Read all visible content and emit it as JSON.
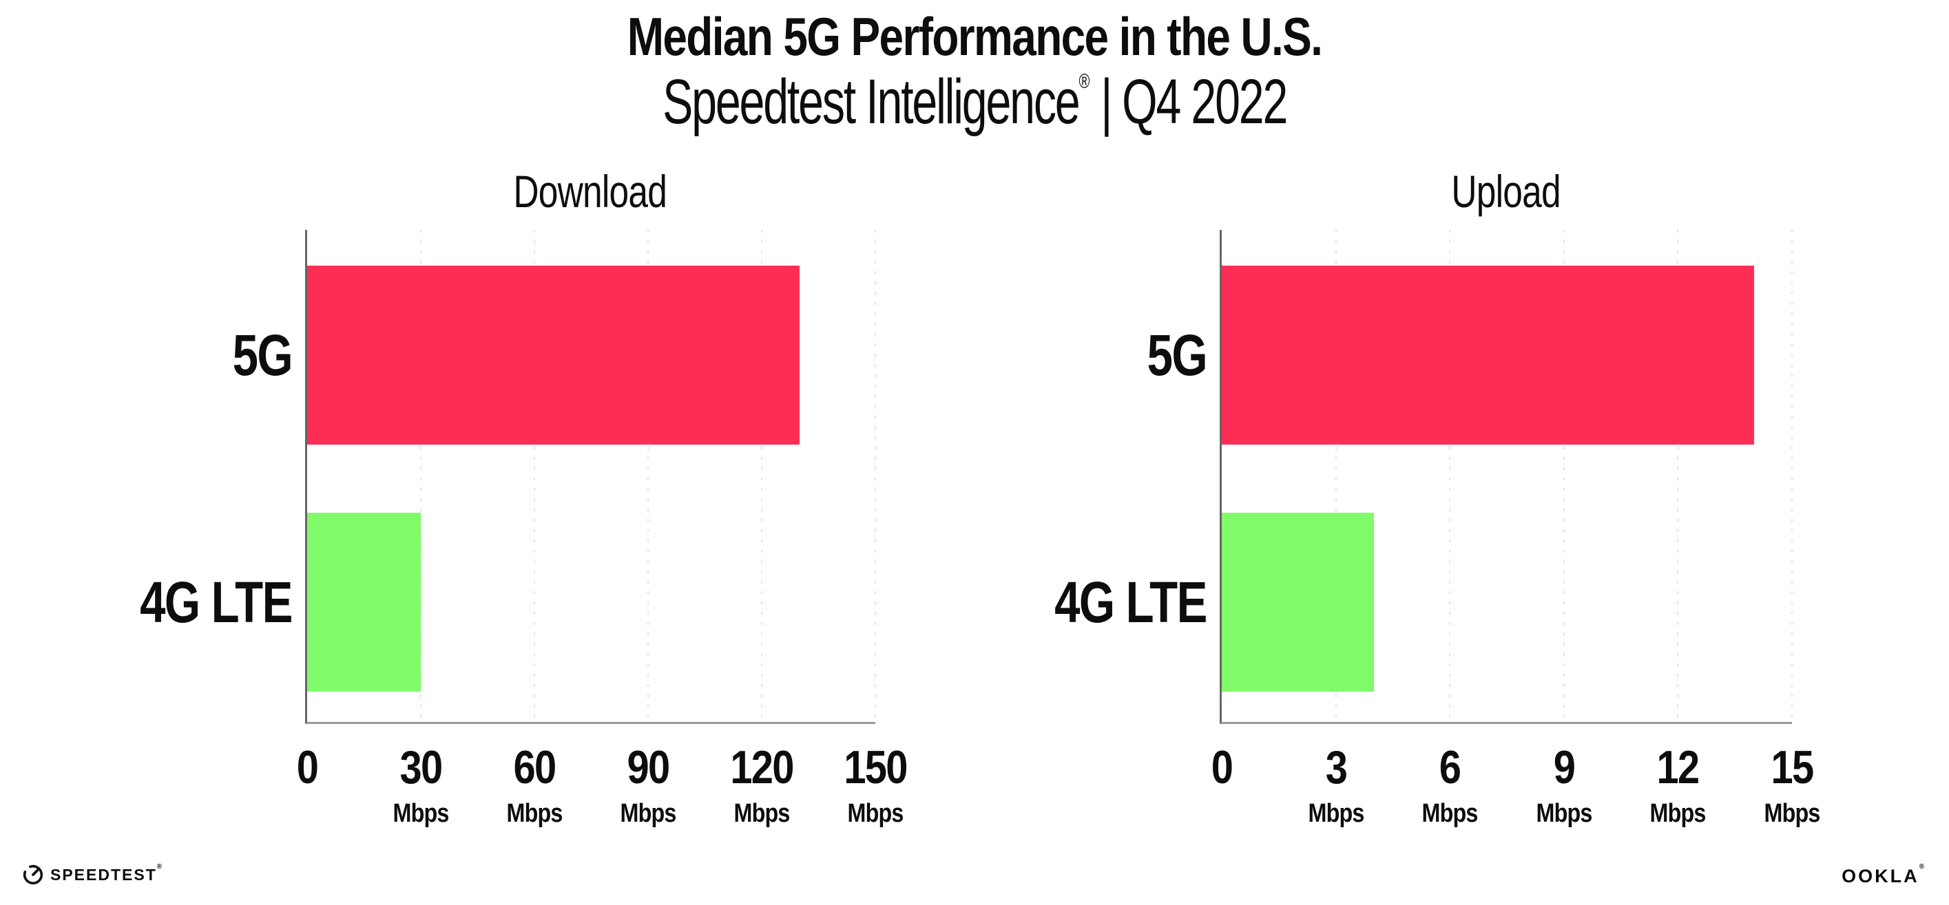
{
  "page": {
    "title": "Median 5G Performance in the U.S.",
    "subtitle": {
      "product": "Speedtest Intelligence",
      "registered_mark": "®",
      "divider": "|",
      "period": "Q4 2022"
    }
  },
  "footer": {
    "speedtest_wordmark": "SPEEDTEST",
    "speedtest_mark": "®",
    "ookla_wordmark": "OOKLA",
    "ookla_mark": "®"
  },
  "colors": {
    "bar_5g": "#FD2D55",
    "bar_4g_lte": "#80FB69",
    "spine": "#666666",
    "axis_line": "#9a9a9a",
    "gridline": "#dfe0ec",
    "text": "#0d0d0d"
  },
  "chart_data": [
    {
      "type": "bar",
      "orientation": "horizontal",
      "title": "Download",
      "categories": [
        "5G",
        "4G LTE"
      ],
      "values": [
        130,
        30
      ],
      "unit": "Mbps",
      "xlim": [
        0,
        150
      ],
      "xticks": [
        0,
        30,
        60,
        90,
        120,
        150
      ],
      "grid": "dotted-vertical",
      "legend": "none",
      "bar_colors": [
        "#FD2D55",
        "#80FB69"
      ]
    },
    {
      "type": "bar",
      "orientation": "horizontal",
      "title": "Upload",
      "categories": [
        "5G",
        "4G LTE"
      ],
      "values": [
        14,
        4
      ],
      "unit": "Mbps",
      "xlim": [
        0,
        15
      ],
      "xticks": [
        0,
        3,
        6,
        9,
        12,
        15
      ],
      "grid": "dotted-vertical",
      "legend": "none",
      "bar_colors": [
        "#FD2D55",
        "#80FB69"
      ]
    }
  ]
}
